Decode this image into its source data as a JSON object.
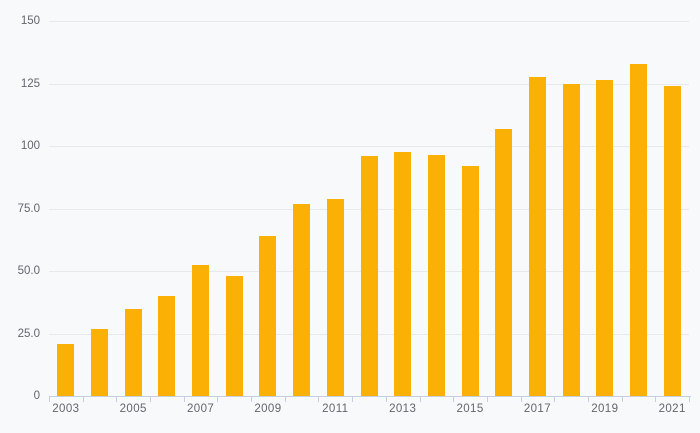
{
  "chart_data": {
    "type": "bar",
    "title": "",
    "categories": [
      "2003",
      "2004",
      "2005",
      "2006",
      "2007",
      "2008",
      "2009",
      "2010",
      "2011",
      "2012",
      "2013",
      "2014",
      "2015",
      "2016",
      "2017",
      "2018",
      "2019",
      "2020",
      "2021"
    ],
    "values": [
      21,
      27,
      35,
      40,
      52.5,
      48,
      64,
      77,
      79,
      96,
      97.5,
      96.5,
      92,
      107,
      127.5,
      125,
      126.5,
      133,
      124
    ],
    "x_tick_labels": [
      "2003",
      "2005",
      "2007",
      "2009",
      "2011",
      "2013",
      "2015",
      "2017",
      "2019",
      "2021"
    ],
    "y_ticks": [
      {
        "value": 150,
        "label": "150"
      },
      {
        "value": 125,
        "label": "125"
      },
      {
        "value": 100,
        "label": "100"
      },
      {
        "value": 75,
        "label": "75.0"
      },
      {
        "value": 50,
        "label": "50.0"
      },
      {
        "value": 25,
        "label": "25.0"
      },
      {
        "value": 0,
        "label": "0"
      }
    ],
    "ylim": [
      0,
      150
    ],
    "xlabel": "",
    "ylabel": "",
    "grid": true,
    "legend_position": "none",
    "colors": {
      "bar": "#FAB005",
      "background": "#F8F9FA",
      "gridline": "#E8E9EC",
      "axis": "#C6CEE2",
      "label_text": "#62666E"
    }
  }
}
